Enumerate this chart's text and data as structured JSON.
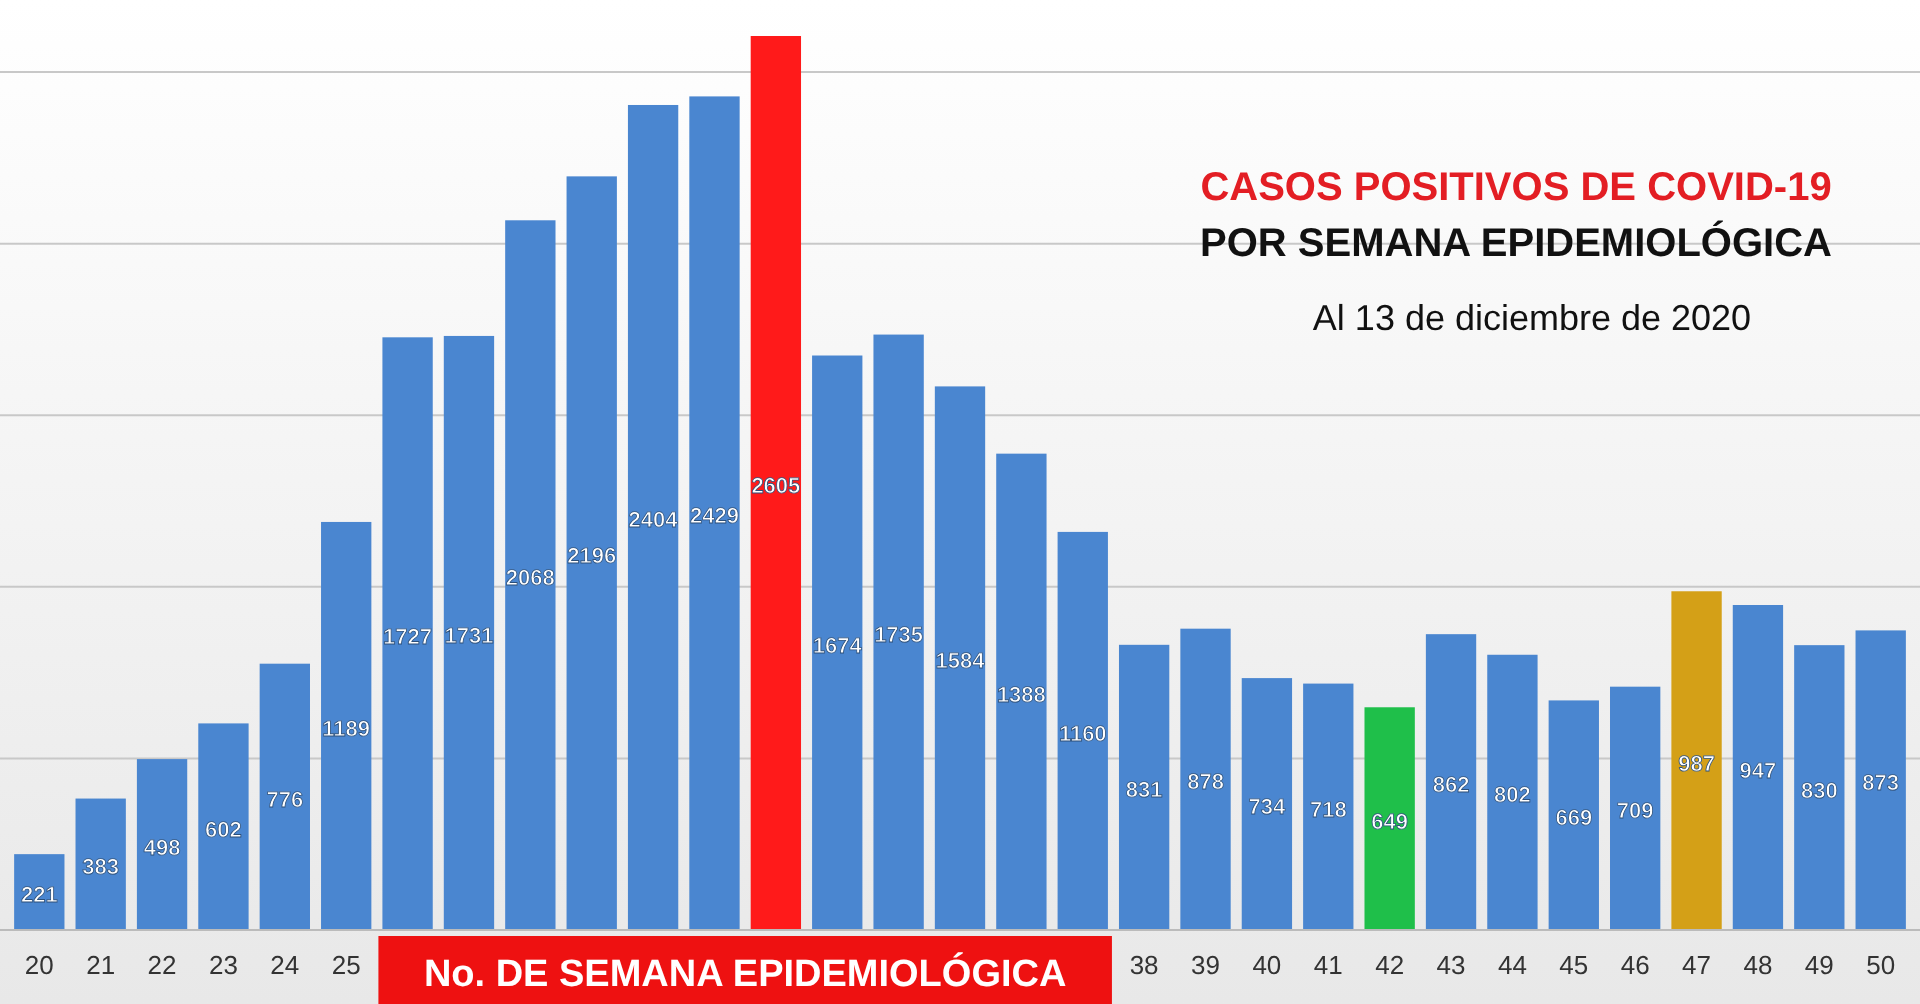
{
  "chart_data": {
    "type": "bar",
    "title": "CASOS POSITIVOS DE COVID-19",
    "subtitle": "POR SEMANA EPIDEMIOLÓGICA",
    "annotations": [
      "Al 13 de diciembre de 2020"
    ],
    "xlabel": "No. DE SEMANA EPIDEMIOLÓGICA",
    "categories": [
      "20",
      "21",
      "22",
      "23",
      "24",
      "25",
      null,
      null,
      null,
      null,
      null,
      null,
      null,
      null,
      null,
      null,
      null,
      null,
      "38",
      "39",
      "40",
      "41",
      "42",
      "43",
      "44",
      "45",
      "46",
      "47",
      "48",
      "49",
      "50"
    ],
    "values": [
      221,
      383,
      498,
      602,
      776,
      1189,
      1727,
      1731,
      2068,
      2196,
      2404,
      2429,
      2605,
      1674,
      1735,
      1584,
      1388,
      1160,
      831,
      878,
      734,
      718,
      649,
      862,
      802,
      669,
      709,
      987,
      947,
      830,
      873
    ],
    "colors": [
      "#4a86d0",
      "#4a86d0",
      "#4a86d0",
      "#4a86d0",
      "#4a86d0",
      "#4a86d0",
      "#4a86d0",
      "#4a86d0",
      "#4a86d0",
      "#4a86d0",
      "#4a86d0",
      "#4a86d0",
      "#ff1a1a",
      "#4a86d0",
      "#4a86d0",
      "#4a86d0",
      "#4a86d0",
      "#4a86d0",
      "#4a86d0",
      "#4a86d0",
      "#4a86d0",
      "#4a86d0",
      "#1fbf4a",
      "#4a86d0",
      "#4a86d0",
      "#4a86d0",
      "#4a86d0",
      "#d4a017",
      "#4a86d0",
      "#4a86d0",
      "#4a86d0"
    ],
    "yticks": [
      {
        "value": 0,
        "label": null
      },
      {
        "value": 500,
        "label": null
      },
      {
        "value": 1000,
        "label": null
      },
      {
        "value": 1500,
        "label": null
      },
      {
        "value": 2000,
        "label": null
      },
      {
        "value": 2500,
        "label": null
      }
    ],
    "grid": "y",
    "data_labels": true,
    "tick_labels": "x"
  }
}
